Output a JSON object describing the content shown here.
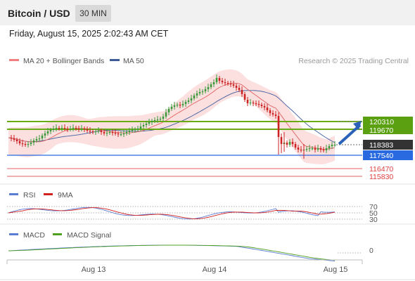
{
  "header": {
    "title": "Bitcoin / USD",
    "timeframe": "30 MIN"
  },
  "datetime": "Friday, August 15, 2025 2:02:43 AM CET",
  "legend": {
    "ma20_bb": "MA 20 + Bollinger Bands",
    "ma50": "MA 50",
    "copyright": "Research © 2025 Trading Central"
  },
  "colors": {
    "up_candle": "#3a9a3a",
    "down_candle": "#cc2222",
    "ma20": "#e36060",
    "ma50": "#4060a0",
    "bollinger_fill": "#fbdada",
    "resistance": "#6aaa14",
    "pivot": "#2a6ae0",
    "support": "#e06060",
    "last_price": "#333333",
    "rsi": "#5b7bd5",
    "rsi_ma": "#d02020",
    "macd": "#5b7bd5",
    "macd_signal": "#50a020"
  },
  "price_labels": {
    "r2": "120310",
    "r1": "119670",
    "last": "118383",
    "pivot": "117540",
    "s1": "116470",
    "s2": "115830"
  },
  "rsi_panel": {
    "rsi_label": "RSI",
    "ma_label": "9MA",
    "level_70": "70",
    "level_50": "50",
    "level_30": "30"
  },
  "macd_panel": {
    "macd_label": "MACD",
    "signal_label": "MACD Signal",
    "zero": "0"
  },
  "x_axis": {
    "labels": [
      "Aug 13",
      "Aug 14",
      "Aug 15"
    ]
  },
  "chart_data": {
    "type": "candlestick",
    "title": "Bitcoin / USD",
    "timeframe": "30 MIN",
    "x_ticks": [
      "Aug 13",
      "Aug 14",
      "Aug 15"
    ],
    "price_ylim": [
      115500,
      124500
    ],
    "levels": {
      "resistance": [
        120310,
        119670
      ],
      "pivot": 117540,
      "support": [
        116470,
        115830
      ],
      "last": 118383
    },
    "ohlc_series_open": [
      119000,
      118850,
      118700,
      118600,
      118520,
      118480,
      118450,
      118520,
      118600,
      118700,
      118820,
      118950,
      119120,
      119300,
      119470,
      119600,
      119700,
      119780,
      119800,
      119720,
      119650,
      119620,
      119600,
      119640,
      119700,
      119780,
      119850,
      119900,
      119930,
      119950,
      119980,
      120050,
      120150,
      120280,
      120420,
      120580,
      120750,
      120950,
      121200,
      121500,
      121800,
      122050,
      122250,
      122400,
      122550,
      122700,
      122850,
      123000,
      123200,
      123350,
      123500,
      123600,
      123650,
      123600,
      123450,
      123250,
      123000,
      122750,
      122500,
      122350,
      122200,
      122050,
      121850,
      121600,
      121300,
      120950,
      120550,
      120100,
      119600,
      119050,
      118500,
      118100,
      117900,
      117800,
      117750,
      117720,
      117700,
      117750,
      117800,
      117850,
      117950,
      118100,
      118250
    ],
    "ohlc_series_close": [
      118850,
      118700,
      118600,
      118520,
      118480,
      118450,
      118520,
      118600,
      118700,
      118820,
      118950,
      119120,
      119300,
      119470,
      119600,
      119700,
      119780,
      119800,
      119720,
      119650,
      119620,
      119600,
      119640,
      119700,
      119780,
      119850,
      119900,
      119930,
      119950,
      119980,
      120050,
      120150,
      120280,
      120420,
      120580,
      120750,
      120950,
      121200,
      121500,
      121800,
      122050,
      122250,
      122400,
      122550,
      122700,
      122850,
      123000,
      123200,
      123350,
      123500,
      123600,
      123650,
      123600,
      123450,
      123250,
      123000,
      122750,
      122500,
      122350,
      122200,
      122050,
      121850,
      121600,
      121300,
      120950,
      120550,
      120100,
      119600,
      119050,
      118500,
      118100,
      117900,
      117800,
      117750,
      117720,
      117700,
      117750,
      117800,
      117850,
      117950,
      118100,
      118250,
      118383
    ],
    "rsi_levels": [
      70,
      50,
      30
    ],
    "macd_zero": 0
  }
}
